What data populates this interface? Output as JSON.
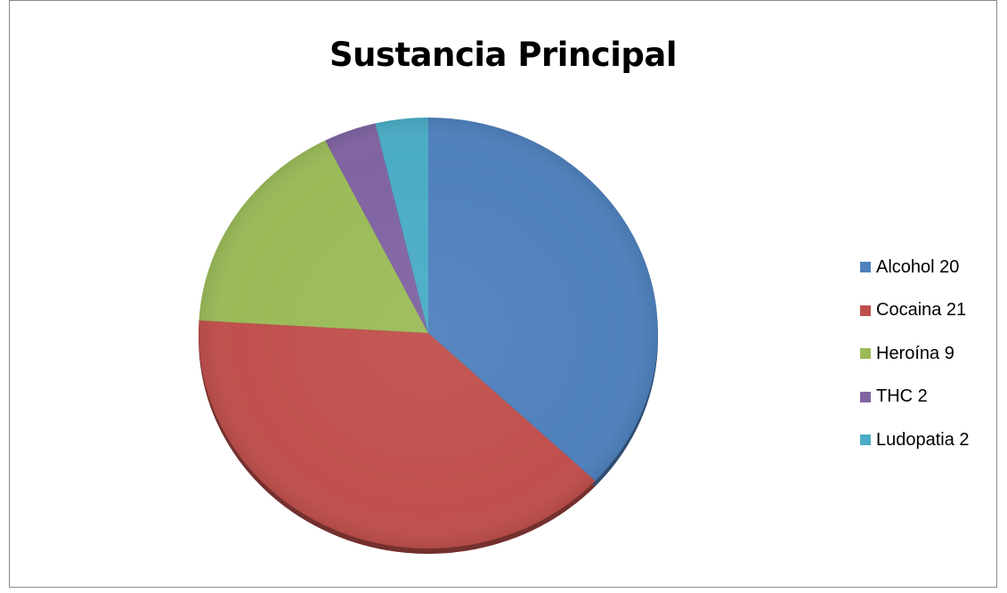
{
  "chart_data": {
    "type": "pie",
    "title": "Sustancia Principal",
    "categories": [
      "Alcohol 20",
      "Cocaina 21",
      "Heroína 9",
      "THC 2",
      "Ludopatia 2"
    ],
    "values": [
      20,
      21,
      9,
      2,
      2
    ],
    "colors": [
      "#4F81BD",
      "#C0504D",
      "#9BBB59",
      "#8064A2",
      "#4BACC6"
    ],
    "legend_position": "right"
  }
}
